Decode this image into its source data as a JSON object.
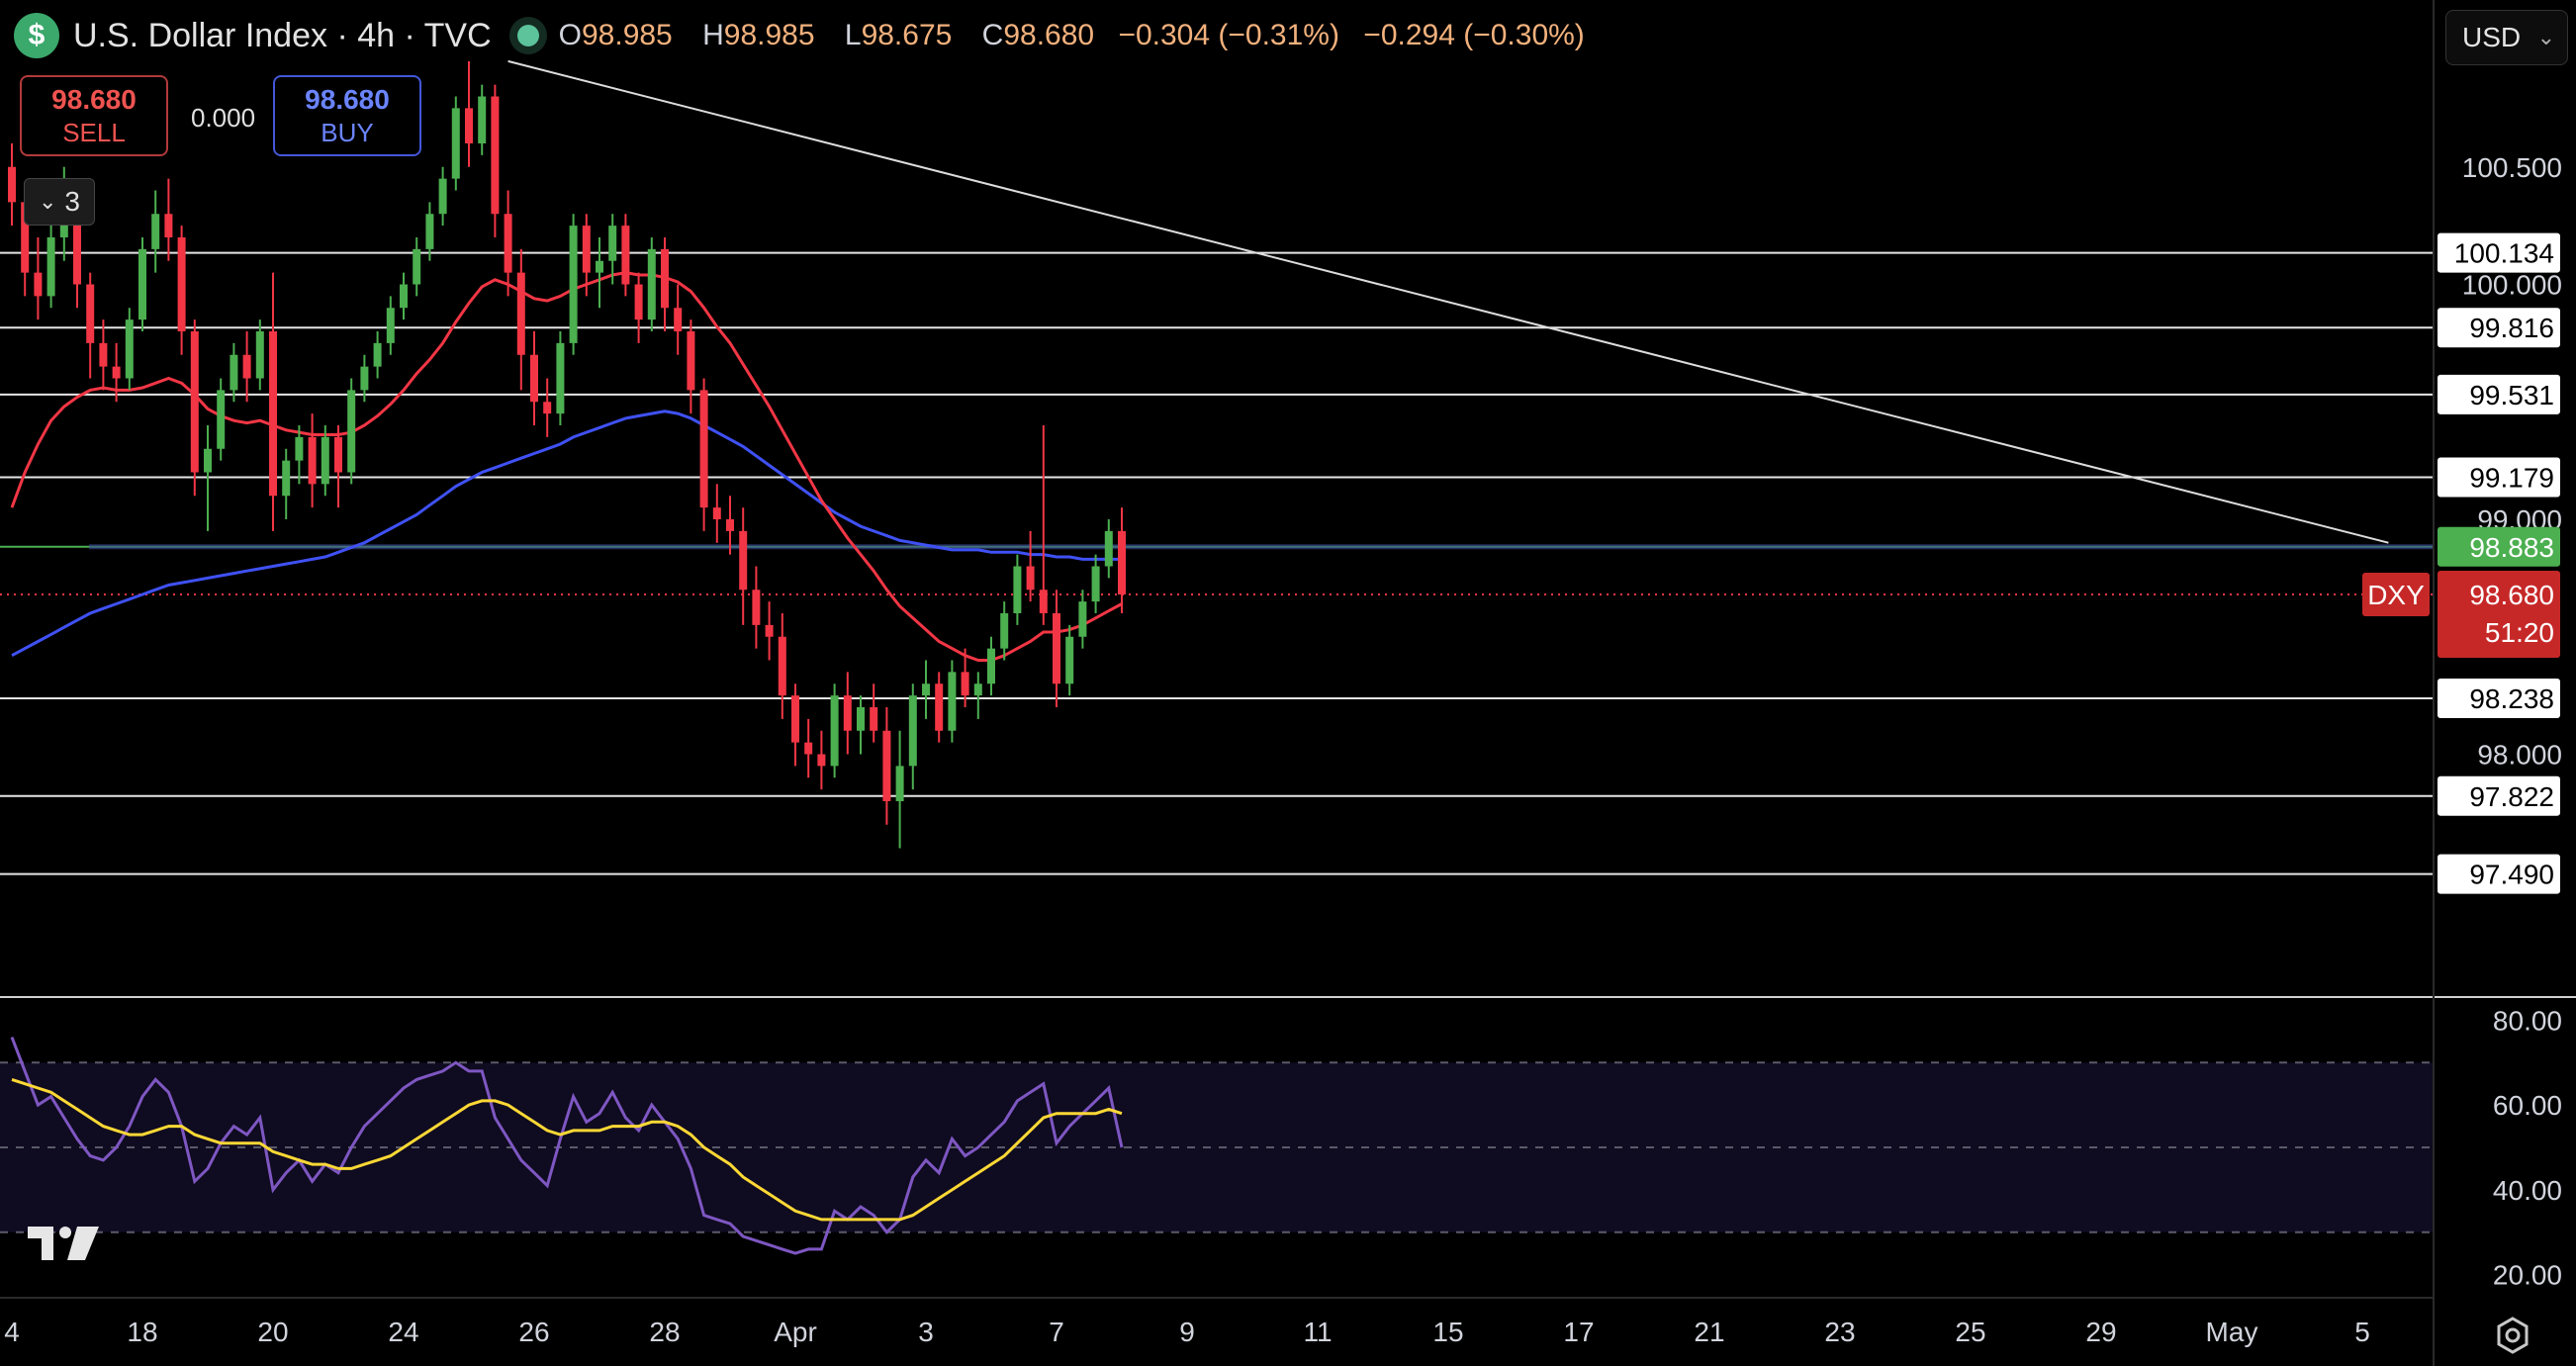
{
  "header": {
    "symbol_icon": "$",
    "title": "U.S. Dollar Index · 4h · TVC",
    "ohlc": {
      "o_label": "O",
      "o": "98.985",
      "h_label": "H",
      "h": "98.985",
      "l_label": "L",
      "l": "98.675",
      "c_label": "C",
      "c": "98.680",
      "change": "−0.304 (−0.31%)",
      "change2": "−0.294 (−0.30%)"
    }
  },
  "trade": {
    "sell_price": "98.680",
    "sell_label": "SELL",
    "spread": "0.000",
    "buy_price": "98.680",
    "buy_label": "BUY"
  },
  "collapse": {
    "count": "3"
  },
  "currency": {
    "value": "USD"
  },
  "icons": {
    "symbol": "dollar-icon",
    "live": "live-status-dot-icon",
    "collapse": "chevron-down-icon",
    "currency_caret": "chevron-down-icon",
    "logo": "tradingview-logo-icon",
    "settings": "settings-gear-icon"
  },
  "colors": {
    "up": "#4caf50",
    "down": "#f23645",
    "ma_fast": "#f23645",
    "ma_slow": "#3f51f5",
    "rsi": "#7e57c2",
    "rsi_ma": "#fdd835",
    "level_green": "#4caf50",
    "last_price": "#c62828"
  },
  "chart_data": [
    {
      "type": "candlestick",
      "title": "U.S. Dollar Index · 4h · TVC",
      "ylim": [
        97.0,
        101.0
      ],
      "grid": false,
      "price_ticks": [
        "100.500",
        "100.000",
        "99.000",
        "98.000"
      ],
      "date_ticks": [
        {
          "label": "4",
          "i": 0
        },
        {
          "label": "18",
          "i": 10
        },
        {
          "label": "20",
          "i": 20
        },
        {
          "label": "24",
          "i": 30
        },
        {
          "label": "26",
          "i": 40
        },
        {
          "label": "28",
          "i": 50
        },
        {
          "label": "Apr",
          "i": 60
        },
        {
          "label": "3",
          "i": 70
        },
        {
          "label": "7",
          "i": 80
        },
        {
          "label": "9",
          "i": 90
        },
        {
          "label": "11",
          "i": 100
        },
        {
          "label": "15",
          "i": 110
        },
        {
          "label": "17",
          "i": 120
        },
        {
          "label": "21",
          "i": 130
        },
        {
          "label": "23",
          "i": 140
        },
        {
          "label": "25",
          "i": 150
        },
        {
          "label": "29",
          "i": 160
        },
        {
          "label": "May",
          "i": 170
        },
        {
          "label": "5",
          "i": 180
        }
      ],
      "horizontal_levels": [
        {
          "value": 100.134,
          "label": "100.134"
        },
        {
          "value": 99.816,
          "label": "99.816"
        },
        {
          "value": 99.531,
          "label": "99.531"
        },
        {
          "value": 99.179,
          "label": "99.179"
        },
        {
          "value": 98.238,
          "label": "98.238"
        },
        {
          "value": 97.822,
          "label": "97.822"
        },
        {
          "value": 97.49,
          "label": "97.490"
        }
      ],
      "highlight_level": {
        "value": 98.883,
        "label": "98.883"
      },
      "last_price": {
        "value": 98.68,
        "label": "98.680",
        "symbol": "DXY",
        "countdown": "51:20"
      },
      "trendline": {
        "from": {
          "i": 38,
          "y": 100.95
        },
        "to": {
          "i": 182,
          "y": 98.9
        }
      },
      "candles": [
        [
          100.5,
          100.6,
          100.25,
          100.35
        ],
        [
          100.35,
          100.4,
          99.95,
          100.05
        ],
        [
          100.05,
          100.2,
          99.85,
          99.95
        ],
        [
          99.95,
          100.3,
          99.9,
          100.2
        ],
        [
          100.2,
          100.5,
          100.1,
          100.4
        ],
        [
          100.4,
          100.45,
          99.9,
          100.0
        ],
        [
          100.0,
          100.05,
          99.6,
          99.75
        ],
        [
          99.75,
          99.85,
          99.55,
          99.65
        ],
        [
          99.65,
          99.75,
          99.5,
          99.6
        ],
        [
          99.6,
          99.9,
          99.55,
          99.85
        ],
        [
          99.85,
          100.2,
          99.8,
          100.15
        ],
        [
          100.15,
          100.4,
          100.05,
          100.3
        ],
        [
          100.3,
          100.45,
          100.1,
          100.2
        ],
        [
          100.2,
          100.25,
          99.7,
          99.8
        ],
        [
          99.8,
          99.85,
          99.1,
          99.2
        ],
        [
          99.2,
          99.4,
          98.95,
          99.3
        ],
        [
          99.3,
          99.6,
          99.25,
          99.55
        ],
        [
          99.55,
          99.75,
          99.5,
          99.7
        ],
        [
          99.7,
          99.8,
          99.5,
          99.6
        ],
        [
          99.6,
          99.85,
          99.55,
          99.8
        ],
        [
          99.8,
          100.05,
          98.95,
          99.1
        ],
        [
          99.1,
          99.3,
          99.0,
          99.25
        ],
        [
          99.25,
          99.4,
          99.15,
          99.35
        ],
        [
          99.35,
          99.45,
          99.05,
          99.15
        ],
        [
          99.15,
          99.4,
          99.1,
          99.35
        ],
        [
          99.35,
          99.4,
          99.05,
          99.2
        ],
        [
          99.2,
          99.6,
          99.15,
          99.55
        ],
        [
          99.55,
          99.7,
          99.5,
          99.65
        ],
        [
          99.65,
          99.8,
          99.6,
          99.75
        ],
        [
          99.75,
          99.95,
          99.7,
          99.9
        ],
        [
          99.9,
          100.05,
          99.85,
          100.0
        ],
        [
          100.0,
          100.2,
          99.95,
          100.15
        ],
        [
          100.15,
          100.35,
          100.1,
          100.3
        ],
        [
          100.3,
          100.5,
          100.25,
          100.45
        ],
        [
          100.45,
          100.8,
          100.4,
          100.75
        ],
        [
          100.75,
          100.95,
          100.5,
          100.6
        ],
        [
          100.6,
          100.85,
          100.55,
          100.8
        ],
        [
          100.8,
          100.85,
          100.2,
          100.3
        ],
        [
          100.3,
          100.4,
          99.95,
          100.05
        ],
        [
          100.05,
          100.15,
          99.55,
          99.7
        ],
        [
          99.7,
          99.8,
          99.4,
          99.5
        ],
        [
          99.5,
          99.6,
          99.35,
          99.45
        ],
        [
          99.45,
          99.8,
          99.4,
          99.75
        ],
        [
          99.75,
          100.3,
          99.7,
          100.25
        ],
        [
          100.25,
          100.3,
          99.95,
          100.05
        ],
        [
          100.05,
          100.2,
          99.9,
          100.1
        ],
        [
          100.1,
          100.3,
          100.0,
          100.25
        ],
        [
          100.25,
          100.3,
          99.95,
          100.0
        ],
        [
          100.0,
          100.05,
          99.75,
          99.85
        ],
        [
          99.85,
          100.2,
          99.8,
          100.15
        ],
        [
          100.15,
          100.2,
          99.8,
          99.9
        ],
        [
          99.9,
          100.0,
          99.7,
          99.8
        ],
        [
          99.8,
          99.85,
          99.45,
          99.55
        ],
        [
          99.55,
          99.6,
          98.95,
          99.05
        ],
        [
          99.05,
          99.15,
          98.9,
          99.0
        ],
        [
          99.0,
          99.1,
          98.85,
          98.95
        ],
        [
          98.95,
          99.05,
          98.55,
          98.7
        ],
        [
          98.7,
          98.8,
          98.45,
          98.55
        ],
        [
          98.55,
          98.65,
          98.4,
          98.5
        ],
        [
          98.5,
          98.6,
          98.15,
          98.25
        ],
        [
          98.25,
          98.3,
          97.95,
          98.05
        ],
        [
          98.05,
          98.15,
          97.9,
          98.0
        ],
        [
          98.0,
          98.1,
          97.85,
          97.95
        ],
        [
          97.95,
          98.3,
          97.9,
          98.25
        ],
        [
          98.25,
          98.35,
          98.0,
          98.1
        ],
        [
          98.1,
          98.25,
          98.0,
          98.2
        ],
        [
          98.2,
          98.3,
          98.05,
          98.1
        ],
        [
          98.1,
          98.2,
          97.7,
          97.8
        ],
        [
          97.8,
          98.1,
          97.6,
          97.95
        ],
        [
          97.95,
          98.3,
          97.85,
          98.25
        ],
        [
          98.25,
          98.4,
          98.15,
          98.3
        ],
        [
          98.3,
          98.35,
          98.05,
          98.1
        ],
        [
          98.1,
          98.4,
          98.05,
          98.35
        ],
        [
          98.35,
          98.45,
          98.2,
          98.25
        ],
        [
          98.25,
          98.35,
          98.15,
          98.3
        ],
        [
          98.3,
          98.5,
          98.25,
          98.45
        ],
        [
          98.45,
          98.65,
          98.4,
          98.6
        ],
        [
          98.6,
          98.85,
          98.55,
          98.8
        ],
        [
          98.8,
          98.95,
          98.65,
          98.7
        ],
        [
          98.7,
          99.4,
          98.55,
          98.6
        ],
        [
          98.6,
          98.7,
          98.2,
          98.3
        ],
        [
          98.3,
          98.55,
          98.25,
          98.5
        ],
        [
          98.5,
          98.7,
          98.45,
          98.65
        ],
        [
          98.65,
          98.85,
          98.6,
          98.8
        ],
        [
          98.8,
          99.0,
          98.75,
          98.95
        ],
        [
          98.95,
          99.05,
          98.6,
          98.68
        ]
      ],
      "ma_fast": [
        99.05,
        99.2,
        99.32,
        99.42,
        99.48,
        99.52,
        99.55,
        99.56,
        99.55,
        99.55,
        99.56,
        99.58,
        99.6,
        99.58,
        99.53,
        99.47,
        99.44,
        99.42,
        99.41,
        99.42,
        99.4,
        99.38,
        99.37,
        99.36,
        99.36,
        99.36,
        99.37,
        99.4,
        99.44,
        99.49,
        99.55,
        99.62,
        99.68,
        99.75,
        99.84,
        99.92,
        99.99,
        100.02,
        100.0,
        99.97,
        99.94,
        99.93,
        99.95,
        99.98,
        100.0,
        100.02,
        100.04,
        100.05,
        100.04,
        100.04,
        100.03,
        100.01,
        99.97,
        99.9,
        99.82,
        99.75,
        99.66,
        99.57,
        99.48,
        99.38,
        99.28,
        99.18,
        99.08,
        99.0,
        98.92,
        98.85,
        98.78,
        98.7,
        98.63,
        98.58,
        98.53,
        98.48,
        98.45,
        98.42,
        98.4,
        98.4,
        98.42,
        98.45,
        98.48,
        98.52,
        98.52,
        98.53,
        98.55,
        98.58,
        98.61,
        98.64
      ],
      "ma_slow": [
        98.42,
        98.45,
        98.48,
        98.51,
        98.54,
        98.57,
        98.6,
        98.62,
        98.64,
        98.66,
        98.68,
        98.7,
        98.72,
        98.73,
        98.74,
        98.75,
        98.76,
        98.77,
        98.78,
        98.79,
        98.8,
        98.81,
        98.82,
        98.83,
        98.84,
        98.86,
        98.88,
        98.9,
        98.93,
        98.96,
        98.99,
        99.02,
        99.06,
        99.1,
        99.14,
        99.17,
        99.2,
        99.22,
        99.24,
        99.26,
        99.28,
        99.3,
        99.32,
        99.35,
        99.37,
        99.39,
        99.41,
        99.43,
        99.44,
        99.45,
        99.46,
        99.45,
        99.43,
        99.4,
        99.37,
        99.34,
        99.31,
        99.27,
        99.23,
        99.19,
        99.15,
        99.11,
        99.07,
        99.03,
        99.0,
        98.97,
        98.95,
        98.93,
        98.91,
        98.9,
        98.89,
        98.88,
        98.87,
        98.87,
        98.87,
        98.86,
        98.86,
        98.86,
        98.85,
        98.85,
        98.84,
        98.84,
        98.83,
        98.83,
        98.83,
        98.83
      ]
    },
    {
      "type": "line",
      "title": "RSI",
      "ylim": [
        15,
        85
      ],
      "y_ticks": [
        "80.00",
        "60.00",
        "40.00",
        "20.00"
      ],
      "bands": {
        "upper": 70,
        "middle": 50,
        "lower": 30
      },
      "series": [
        {
          "role": "rsi",
          "values": [
            76,
            68,
            60,
            62,
            57,
            52,
            48,
            47,
            50,
            55,
            62,
            66,
            63,
            55,
            42,
            45,
            51,
            55,
            53,
            57,
            40,
            44,
            47,
            42,
            46,
            44,
            50,
            55,
            58,
            61,
            64,
            66,
            67,
            68,
            70,
            68,
            68,
            57,
            52,
            47,
            44,
            41,
            52,
            62,
            56,
            58,
            63,
            57,
            54,
            60,
            56,
            52,
            45,
            34,
            33,
            32,
            29,
            28,
            27,
            26,
            25,
            26,
            26,
            35,
            33,
            36,
            34,
            30,
            33,
            43,
            47,
            44,
            52,
            48,
            50,
            53,
            56,
            61,
            63,
            65,
            51,
            55,
            58,
            61,
            64,
            50
          ]
        },
        {
          "role": "rsi_ma",
          "values": [
            66,
            65,
            64,
            63,
            61,
            59,
            57,
            55,
            54,
            53,
            53,
            54,
            55,
            55,
            53,
            52,
            51,
            51,
            51,
            51,
            49,
            48,
            47,
            46,
            46,
            45,
            45,
            46,
            47,
            48,
            50,
            52,
            54,
            56,
            58,
            60,
            61,
            61,
            60,
            58,
            56,
            54,
            53,
            54,
            54,
            54,
            55,
            55,
            55,
            56,
            56,
            55,
            53,
            50,
            48,
            46,
            43,
            41,
            39,
            37,
            35,
            34,
            33,
            33,
            33,
            33,
            33,
            33,
            33,
            34,
            36,
            38,
            40,
            42,
            44,
            46,
            48,
            51,
            54,
            57,
            58,
            58,
            58,
            58,
            59,
            58
          ]
        }
      ]
    }
  ]
}
